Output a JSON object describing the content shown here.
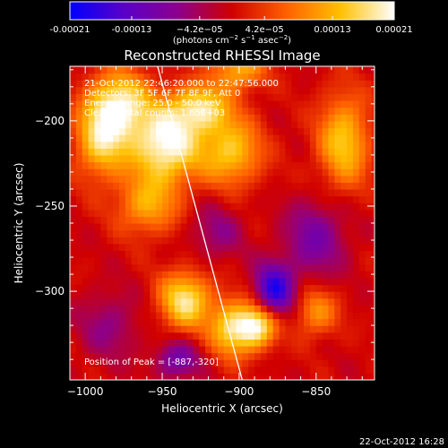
{
  "chart_data": {
    "type": "heatmap",
    "title": "Reconstructed RHESSI Image",
    "xlabel": "Heliocentric X (arcsec)",
    "ylabel": "Heliocentric Y (arcsec)",
    "xlim": [
      -1010,
      -812
    ],
    "ylim": [
      -352,
      -168
    ],
    "x_ticks": [
      -1000,
      -950,
      -900,
      -850
    ],
    "x_tick_labels": [
      "−1000",
      "−950",
      "−900",
      "−850"
    ],
    "y_ticks": [
      -200,
      -250,
      -300
    ],
    "y_tick_labels": [
      "−200",
      "−250",
      "−300"
    ],
    "colorbar": {
      "min": -0.00021,
      "max": 0.00021,
      "ticks": [
        -0.00021,
        -0.00013,
        -4.2e-05,
        4.2e-05,
        0.00013,
        0.00021
      ],
      "tick_labels": [
        "-0.00021",
        "-0.00013",
        "−4.2e−05",
        "4.2e−05",
        "0.00013",
        "0.00021"
      ],
      "colors": [
        "#0000ff",
        "#5a00c8",
        "#8c008c",
        "#d00000",
        "#ff6000",
        "#ffc000",
        "#ffffff"
      ],
      "unit_prefix": "(photons cm",
      "unit_sup1": "−2",
      "unit_mid": " s",
      "unit_sup2": "−1",
      "unit_mid2": " asec",
      "unit_sup3": "−2",
      "unit_suffix": ")"
    },
    "annotations": [
      "21-Oct-2012 22:46:20.000 to 22:47:56.000",
      "Detectors: 3F 5F 6F 7F 8F 9F, Att 0",
      "Energy Range: 25.0 - 50.0 keV",
      "Clean    Total counts: 1.65E+03"
    ],
    "peak_label": "Position of Peak = [-887,-320]",
    "peak": {
      "x": -887,
      "y": -320
    },
    "limb_line": [
      [
        -953,
        -168
      ],
      [
        -898,
        -352
      ]
    ],
    "footer": "22-Oct-2012 16:28",
    "hotspots": [
      {
        "x": -948,
        "y": -214,
        "amp": 1.0,
        "sx": 16,
        "sy": 16
      },
      {
        "x": -978,
        "y": -190,
        "amp": 0.85,
        "sx": 14,
        "sy": 14
      },
      {
        "x": -990,
        "y": -212,
        "amp": 0.7,
        "sx": 12,
        "sy": 16
      },
      {
        "x": -925,
        "y": -192,
        "amp": 0.75,
        "sx": 14,
        "sy": 10
      },
      {
        "x": -905,
        "y": -218,
        "amp": 0.7,
        "sx": 14,
        "sy": 14
      },
      {
        "x": -960,
        "y": -250,
        "amp": 0.55,
        "sx": 14,
        "sy": 12
      },
      {
        "x": -935,
        "y": -305,
        "amp": 0.85,
        "sx": 12,
        "sy": 12
      },
      {
        "x": -905,
        "y": -322,
        "amp": 0.75,
        "sx": 10,
        "sy": 12
      },
      {
        "x": -888,
        "y": -320,
        "amp": 0.9,
        "sx": 9,
        "sy": 9
      },
      {
        "x": -832,
        "y": -212,
        "amp": 0.7,
        "sx": 12,
        "sy": 20
      },
      {
        "x": -850,
        "y": -312,
        "amp": 0.5,
        "sx": 10,
        "sy": 10
      },
      {
        "x": -900,
        "y": -170,
        "amp": 0.6,
        "sx": 12,
        "sy": 8
      },
      {
        "x": -877,
        "y": -299,
        "amp": -0.85,
        "sx": 9,
        "sy": 11
      },
      {
        "x": -850,
        "y": -268,
        "amp": -0.45,
        "sx": 14,
        "sy": 16
      },
      {
        "x": -915,
        "y": -265,
        "amp": -0.3,
        "sx": 12,
        "sy": 12
      },
      {
        "x": -985,
        "y": -320,
        "amp": -0.3,
        "sx": 14,
        "sy": 14
      },
      {
        "x": -940,
        "y": -340,
        "amp": -0.5,
        "sx": 10,
        "sy": 8
      }
    ]
  }
}
